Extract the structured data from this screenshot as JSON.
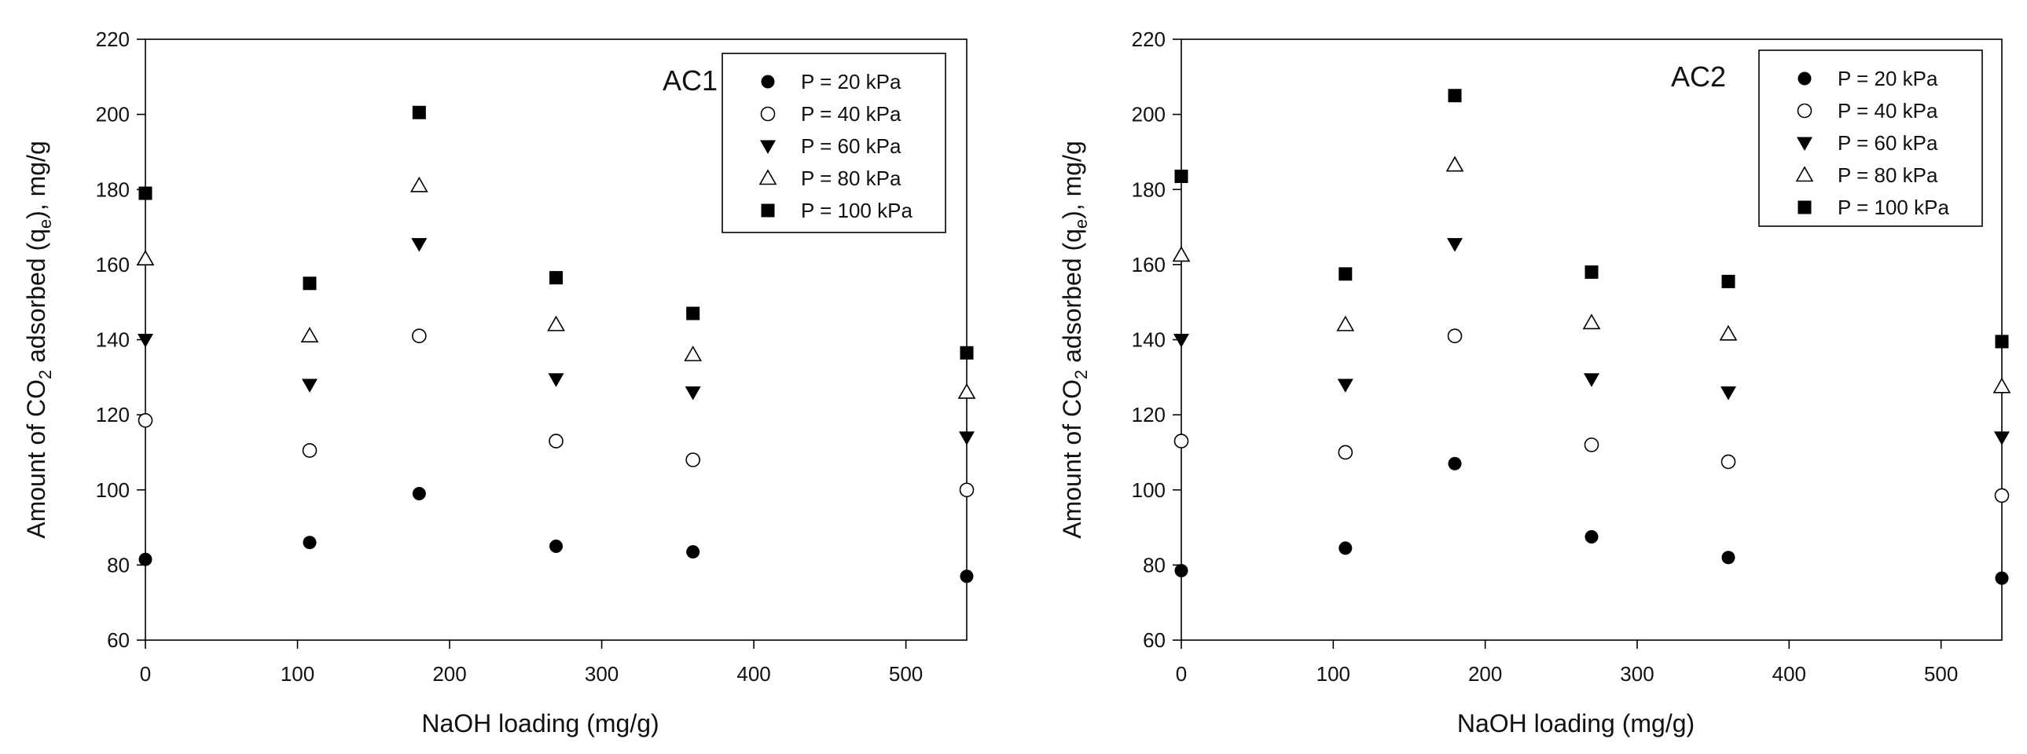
{
  "chart_data": [
    {
      "type": "scatter",
      "title": "",
      "panel_label": "AC1",
      "xlabel": "NaOH loading (mg/g)",
      "ylabel": {
        "prefix": "Amount of CO",
        "sub1": "2",
        "middle": " adsorbed (q",
        "sub2": "e",
        "suffix": "), mg/g"
      },
      "xlim": [
        0,
        540
      ],
      "ylim": [
        60,
        220
      ],
      "xticks": [
        0,
        100,
        200,
        300,
        400,
        500
      ],
      "yticks": [
        60,
        80,
        100,
        120,
        140,
        160,
        180,
        200,
        220
      ],
      "grid": false,
      "legend_position": "top-right",
      "x": [
        0,
        108,
        180,
        270,
        360,
        540
      ],
      "series": [
        {
          "name": "P = 20 kPa",
          "marker": "filled-circle",
          "values": [
            81.5,
            86,
            99,
            85,
            83.5,
            77
          ]
        },
        {
          "name": "P = 40 kPa",
          "marker": "open-circle",
          "values": [
            118.5,
            110.5,
            141,
            113,
            108,
            100
          ]
        },
        {
          "name": "P = 60 kPa",
          "marker": "filled-triangle-down",
          "values": [
            140,
            128,
            165.5,
            129.5,
            126,
            114
          ]
        },
        {
          "name": "P = 80 kPa",
          "marker": "open-triangle-up",
          "values": [
            161.5,
            141,
            181,
            144,
            136,
            126
          ]
        },
        {
          "name": "P = 100 kPa",
          "marker": "filled-square",
          "values": [
            179,
            155,
            200.5,
            156.5,
            147,
            136.5
          ]
        }
      ]
    },
    {
      "type": "scatter",
      "title": "",
      "panel_label": "AC2",
      "xlabel": "NaOH loading (mg/g)",
      "ylabel": {
        "prefix": "Amount of CO",
        "sub1": "2",
        "middle": " adsorbed (q",
        "sub2": "e",
        "suffix": "), mg/g"
      },
      "xlim": [
        0,
        540
      ],
      "ylim": [
        60,
        220
      ],
      "xticks": [
        0,
        100,
        200,
        300,
        400,
        500
      ],
      "yticks": [
        60,
        80,
        100,
        120,
        140,
        160,
        180,
        200,
        220
      ],
      "grid": false,
      "legend_position": "top-right",
      "x": [
        0,
        108,
        180,
        270,
        360,
        540
      ],
      "series": [
        {
          "name": "P = 20 kPa",
          "marker": "filled-circle",
          "values": [
            78.5,
            84.5,
            107,
            87.5,
            82,
            76.5
          ]
        },
        {
          "name": "P = 40 kPa",
          "marker": "open-circle",
          "values": [
            113,
            110,
            141,
            112,
            107.5,
            98.5
          ]
        },
        {
          "name": "P = 60 kPa",
          "marker": "filled-triangle-down",
          "values": [
            140,
            128,
            165.5,
            129.5,
            126,
            114
          ]
        },
        {
          "name": "P = 80 kPa",
          "marker": "open-triangle-up",
          "values": [
            162.5,
            144,
            186.5,
            144.5,
            141.5,
            127.5
          ]
        },
        {
          "name": "P = 100 kPa",
          "marker": "filled-square",
          "values": [
            183.5,
            157.5,
            205,
            158,
            155.5,
            139.5
          ]
        }
      ]
    }
  ]
}
